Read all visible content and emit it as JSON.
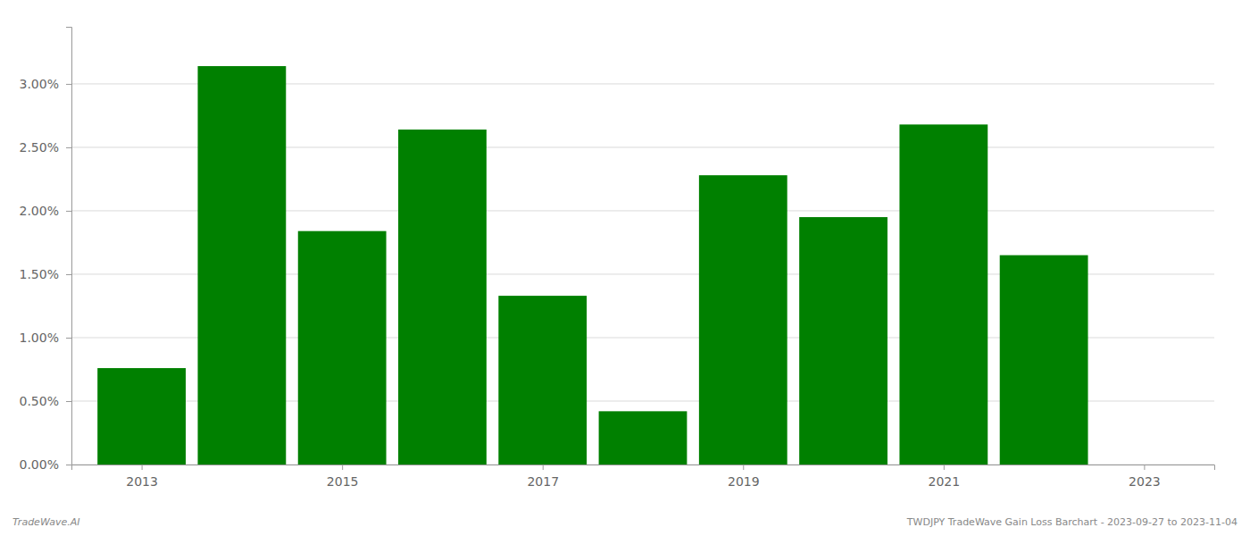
{
  "chart_data": {
    "type": "bar",
    "x": [
      2013,
      2014,
      2015,
      2016,
      2017,
      2018,
      2019,
      2020,
      2021,
      2022
    ],
    "values": [
      0.0076,
      0.0314,
      0.0184,
      0.0264,
      0.0133,
      0.0042,
      0.0228,
      0.0195,
      0.0268,
      0.0165
    ],
    "color": "#008000",
    "xlim": [
      2012.3,
      2023.7
    ],
    "xticks": [
      2013,
      2015,
      2017,
      2019,
      2021,
      2023
    ],
    "ylim": [
      0.0,
      0.0345
    ],
    "yticks": [
      {
        "value": 0.0,
        "label": "0.00%"
      },
      {
        "value": 0.005,
        "label": "0.50%"
      },
      {
        "value": 0.01,
        "label": "1.00%"
      },
      {
        "value": 0.015,
        "label": "1.50%"
      },
      {
        "value": 0.02,
        "label": "2.00%"
      },
      {
        "value": 0.025,
        "label": "2.50%"
      },
      {
        "value": 0.03,
        "label": "3.00%"
      }
    ],
    "grid": true,
    "annotations": [
      "TradeWave.AI",
      "TWDJPY TradeWave Gain Loss Barchart - 2023-09-27 to 2023-11-04"
    ]
  }
}
